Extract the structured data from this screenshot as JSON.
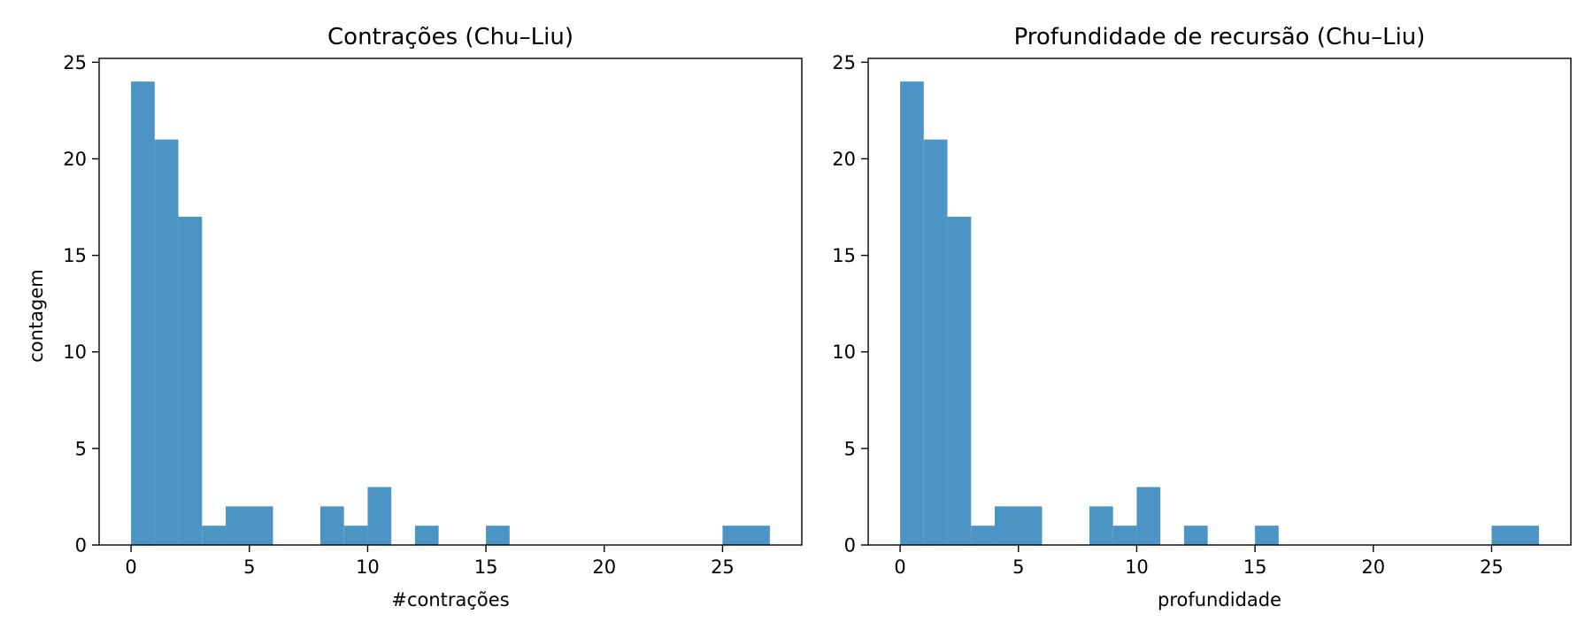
{
  "chart_data": [
    {
      "type": "bar",
      "title": "Contrações (Chu–Liu)",
      "xlabel": "#contrações",
      "ylabel": "contagem",
      "xlim": [
        -1.35,
        28.35
      ],
      "ylim": [
        0,
        25.2
      ],
      "xticks": [
        0,
        5,
        10,
        15,
        20,
        25
      ],
      "yticks": [
        0,
        5,
        10,
        15,
        20,
        25
      ],
      "grid": false,
      "color": "#4c94c4",
      "bins": [
        {
          "x0": 0,
          "x1": 1,
          "count": 24
        },
        {
          "x0": 1,
          "x1": 2,
          "count": 21
        },
        {
          "x0": 2,
          "x1": 3,
          "count": 17
        },
        {
          "x0": 3,
          "x1": 4,
          "count": 1
        },
        {
          "x0": 4,
          "x1": 6,
          "count": 2
        },
        {
          "x0": 8,
          "x1": 9,
          "count": 2
        },
        {
          "x0": 9,
          "x1": 10,
          "count": 1
        },
        {
          "x0": 10,
          "x1": 11,
          "count": 3
        },
        {
          "x0": 12,
          "x1": 13,
          "count": 1
        },
        {
          "x0": 15,
          "x1": 16,
          "count": 1
        },
        {
          "x0": 25,
          "x1": 27,
          "count": 1
        }
      ]
    },
    {
      "type": "bar",
      "title": "Profundidade de recursão (Chu–Liu)",
      "xlabel": "profundidade",
      "ylabel": "",
      "xlim": [
        -1.35,
        28.35
      ],
      "ylim": [
        0,
        25.2
      ],
      "xticks": [
        0,
        5,
        10,
        15,
        20,
        25
      ],
      "yticks": [
        0,
        5,
        10,
        15,
        20,
        25
      ],
      "grid": false,
      "color": "#4c94c4",
      "bins": [
        {
          "x0": 0,
          "x1": 1,
          "count": 24
        },
        {
          "x0": 1,
          "x1": 2,
          "count": 21
        },
        {
          "x0": 2,
          "x1": 3,
          "count": 17
        },
        {
          "x0": 3,
          "x1": 4,
          "count": 1
        },
        {
          "x0": 4,
          "x1": 6,
          "count": 2
        },
        {
          "x0": 8,
          "x1": 9,
          "count": 2
        },
        {
          "x0": 9,
          "x1": 10,
          "count": 1
        },
        {
          "x0": 10,
          "x1": 11,
          "count": 3
        },
        {
          "x0": 12,
          "x1": 13,
          "count": 1
        },
        {
          "x0": 15,
          "x1": 16,
          "count": 1
        },
        {
          "x0": 25,
          "x1": 27,
          "count": 1
        }
      ]
    }
  ]
}
